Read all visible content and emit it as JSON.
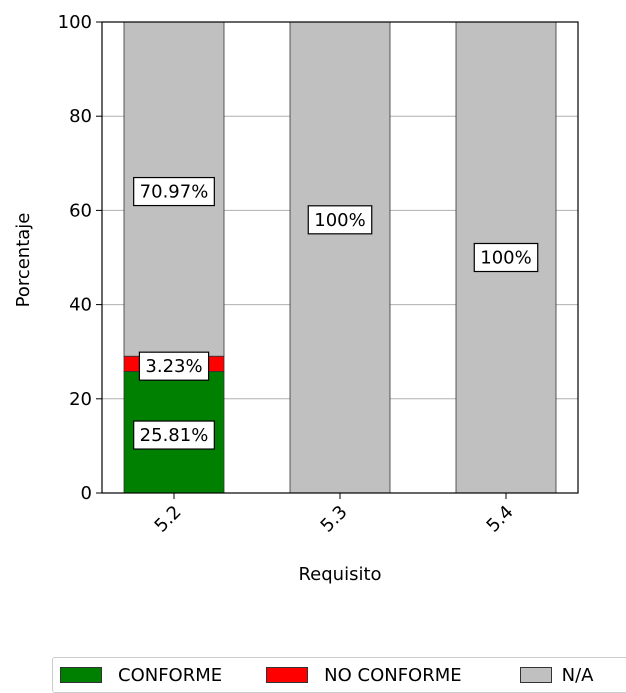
{
  "chart_data": {
    "type": "bar",
    "stacked": true,
    "categories": [
      "5.2",
      "5.3",
      "5.4"
    ],
    "series": [
      {
        "name": "CONFORME",
        "color": "#008000",
        "values": [
          25.81,
          0,
          0
        ],
        "labels": [
          "25.81%",
          "",
          ""
        ]
      },
      {
        "name": "NO CONFORME",
        "color": "#ff0000",
        "values": [
          3.23,
          0,
          0
        ],
        "labels": [
          "3.23%",
          "",
          ""
        ]
      },
      {
        "name": "N/A",
        "color": "#c0c0c0",
        "values": [
          70.97,
          100,
          100
        ],
        "labels": [
          "70.97%",
          "100%",
          "100%"
        ]
      }
    ],
    "xlabel": "Requisito",
    "ylabel": "Porcentaje",
    "ylim": [
      0,
      100
    ],
    "yticks": [
      0,
      20,
      40,
      60,
      80,
      100
    ],
    "grid": "horizontal",
    "legend": "bottom"
  }
}
